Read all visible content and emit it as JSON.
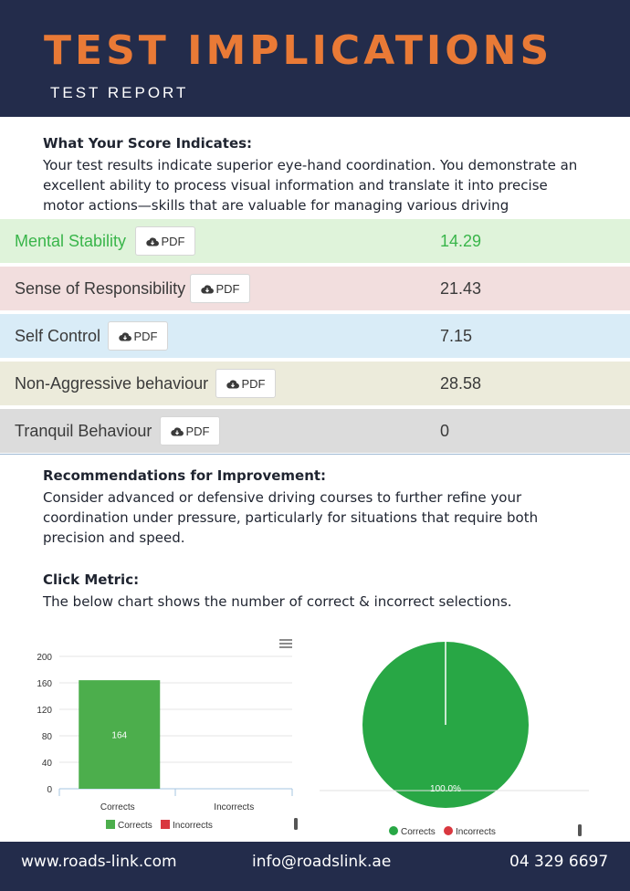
{
  "header": {
    "title": "TEST IMPLICATIONS",
    "subtitle": "TEST REPORT"
  },
  "score_section": {
    "heading": "What Your Score Indicates:",
    "body": "Your test results indicate superior eye-hand coordination. You demonstrate an excellent ability to process visual information and translate it into precise motor actions—skills that are valuable for managing various driving"
  },
  "scores": {
    "pdf_label": "PDF",
    "rows": [
      {
        "name": "Mental Stability",
        "value": "14.29",
        "bg": "#dff3da",
        "text_color": "#39b54a"
      },
      {
        "name": "Sense of Responsibility",
        "value": "21.43",
        "bg": "#f2dede",
        "text_color": "#3a3a3a"
      },
      {
        "name": "Self Control",
        "value": "7.15",
        "bg": "#d9ecf7",
        "text_color": "#3a3a3a"
      },
      {
        "name": "Non-Aggressive behaviour",
        "value": "28.58",
        "bg": "#ecebdb",
        "text_color": "#3a3a3a"
      },
      {
        "name": "Tranquil Behaviour",
        "value": "0",
        "bg": "#dcdcdc",
        "text_color": "#3a3a3a"
      }
    ]
  },
  "recommendations": {
    "heading": "Recommendations for Improvement:",
    "body": "Consider advanced or defensive driving courses to further refine your coordination under pressure, particularly for situations that require both precision and speed."
  },
  "click_metric": {
    "heading": "Click Metric:",
    "body": "The below chart shows the number of correct & incorrect selections."
  },
  "chart_data": [
    {
      "type": "bar",
      "categories": [
        "Corrects",
        "Incorrects"
      ],
      "values": [
        164,
        0
      ],
      "colors": [
        "#4cae4c",
        "#d9373f"
      ],
      "data_labels": [
        "164",
        ""
      ],
      "y_ticks": [
        0,
        40,
        80,
        120,
        160,
        200
      ],
      "ylim": [
        0,
        200
      ],
      "legend": [
        "Corrects",
        "Incorrects"
      ],
      "legend_position": "bottom"
    },
    {
      "type": "pie",
      "categories": [
        "Corrects",
        "Incorrects"
      ],
      "values": [
        100,
        0
      ],
      "colors": [
        "#28a745",
        "#d9373f"
      ],
      "data_labels": [
        "100.0%"
      ],
      "legend": [
        "Corrects",
        "Incorrects"
      ],
      "legend_position": "bottom"
    }
  ],
  "footer": {
    "website": "www.roads-link.com",
    "email": "info@roadslink.ae",
    "phone": "04 329 6697"
  }
}
